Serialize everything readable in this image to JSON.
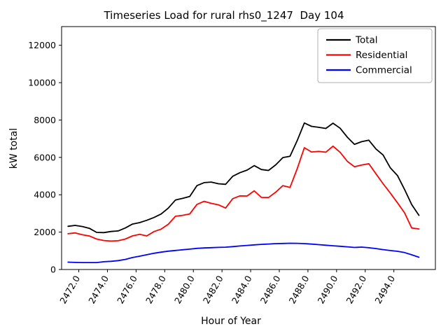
{
  "chart_data": {
    "type": "line",
    "title": "Timeseries Load for rural rhs0_1247  Day 104",
    "xlabel": "Hour of Year",
    "ylabel": "kW total",
    "xlim": [
      2470.8,
      2496.9
    ],
    "ylim": [
      0,
      13000
    ],
    "xticks": [
      2472,
      2474,
      2476,
      2478,
      2480,
      2482,
      2484,
      2486,
      2488,
      2490,
      2492,
      2494
    ],
    "xtick_labels": [
      "2472.0",
      "2474.0",
      "2476.0",
      "2478.0",
      "2480.0",
      "2482.0",
      "2484.0",
      "2486.0",
      "2488.0",
      "2490.0",
      "2492.0",
      "2494.0"
    ],
    "xtick_rotation_deg": 60,
    "yticks": [
      0,
      2000,
      4000,
      6000,
      8000,
      10000,
      12000
    ],
    "ytick_labels": [
      "0",
      "2000",
      "4000",
      "6000",
      "8000",
      "10000",
      "12000"
    ],
    "grid": false,
    "legend_position": "upper right",
    "x": [
      2471.25,
      2471.75,
      2472.25,
      2472.75,
      2473.25,
      2473.75,
      2474.25,
      2474.75,
      2475.25,
      2475.75,
      2476.25,
      2476.75,
      2477.25,
      2477.75,
      2478.25,
      2478.75,
      2479.25,
      2479.75,
      2480.25,
      2480.75,
      2481.25,
      2481.75,
      2482.25,
      2482.75,
      2483.25,
      2483.75,
      2484.25,
      2484.75,
      2485.25,
      2485.75,
      2486.25,
      2486.75,
      2487.25,
      2487.75,
      2488.25,
      2488.75,
      2489.25,
      2489.75,
      2490.25,
      2490.75,
      2491.25,
      2491.75,
      2492.25,
      2492.75,
      2493.25,
      2493.75,
      2494.25,
      2494.75,
      2495.25,
      2495.75
    ],
    "series": [
      {
        "name": "Total",
        "color": "#000000",
        "values": [
          2310,
          2360,
          2300,
          2200,
          1985,
          1975,
          2035,
          2065,
          2220,
          2430,
          2510,
          2635,
          2785,
          2970,
          3285,
          3720,
          3805,
          3910,
          4490,
          4650,
          4680,
          4590,
          4560,
          4990,
          5180,
          5320,
          5560,
          5350,
          5300,
          5600,
          5990,
          6060,
          6900,
          7840,
          7660,
          7610,
          7550,
          7830,
          7560,
          7080,
          6700,
          6840,
          6920,
          6450,
          6130,
          5440,
          5030,
          4280,
          3470,
          2900
        ]
      },
      {
        "name": "Residential",
        "color": "#ff0000",
        "values": [
          1915,
          1960,
          1860,
          1790,
          1630,
          1550,
          1520,
          1540,
          1630,
          1800,
          1880,
          1800,
          2030,
          2160,
          2420,
          2850,
          2900,
          2975,
          3480,
          3650,
          3540,
          3460,
          3290,
          3790,
          3940,
          3935,
          4210,
          3860,
          3850,
          4140,
          4490,
          4390,
          5400,
          6520,
          6290,
          6320,
          6280,
          6600,
          6270,
          5790,
          5500,
          5590,
          5660,
          5120,
          4590,
          4090,
          3570,
          3030,
          2220,
          2170
        ]
      },
      {
        "name": "Commercial",
        "color": "#0000ff",
        "values": [
          395,
          380,
          372,
          370,
          372,
          415,
          440,
          475,
          540,
          640,
          710,
          790,
          870,
          930,
          980,
          1020,
          1055,
          1090,
          1130,
          1155,
          1170,
          1185,
          1195,
          1225,
          1260,
          1290,
          1320,
          1345,
          1365,
          1385,
          1395,
          1405,
          1400,
          1385,
          1360,
          1330,
          1300,
          1270,
          1245,
          1215,
          1180,
          1200,
          1165,
          1120,
          1065,
          1015,
          975,
          905,
          785,
          655
        ]
      }
    ]
  }
}
